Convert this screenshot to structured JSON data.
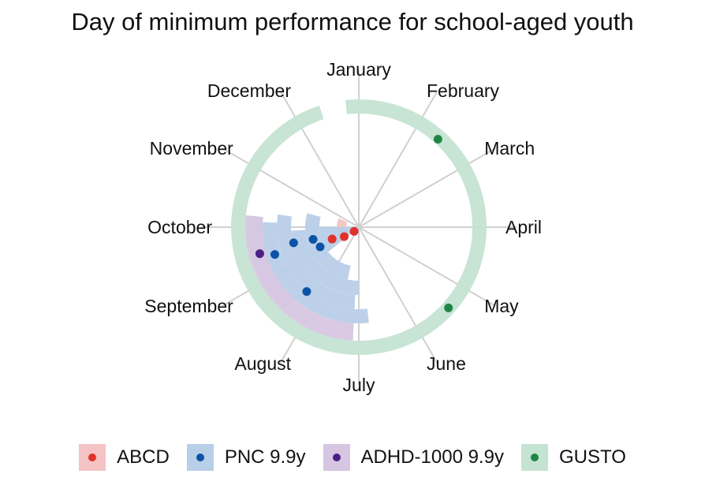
{
  "chart_data": {
    "type": "polar-bar",
    "title": "Day of minimum performance for school-aged youth",
    "months": [
      "January",
      "February",
      "March",
      "April",
      "May",
      "June",
      "July",
      "August",
      "September",
      "October",
      "November",
      "December"
    ],
    "series": [
      {
        "name": "ABCD",
        "fill": "#f4c4c4",
        "dot": "#e0322c",
        "arcs": [
          {
            "r_in": 16,
            "r_out": 28,
            "month_start": 7.6,
            "month_end": 9.8
          }
        ],
        "points": [
          {
            "month": 7.6,
            "r": 8
          },
          {
            "month": 7.9,
            "r": 22
          },
          {
            "month": 8.2,
            "r": 37
          }
        ]
      },
      {
        "name": "PNC 9.9y",
        "fill": "#b8cfe8",
        "dot": "#0b53a6",
        "arcs": [
          {
            "r_in": 0,
            "r_out": 50,
            "month_start": 7.7,
            "month_end": 9.0
          },
          {
            "r_in": 50,
            "r_out": 68,
            "month_start": 6.4,
            "month_end": 9.5
          },
          {
            "r_in": 68,
            "r_out": 86,
            "month_start": 6.0,
            "month_end": 8.9
          },
          {
            "r_in": 86,
            "r_out": 104,
            "month_start": 6.1,
            "month_end": 9.3
          },
          {
            "r_in": 104,
            "r_out": 122,
            "month_start": 5.8,
            "month_end": 9.1
          },
          {
            "r_in": 122,
            "r_out": 140,
            "month_start": 7.4,
            "month_end": 9.2
          }
        ],
        "points": [
          {
            "month": 8.1,
            "r": 55
          },
          {
            "month": 8.5,
            "r": 60
          },
          {
            "month": 8.55,
            "r": 85
          },
          {
            "month": 7.3,
            "r": 105
          },
          {
            "month": 8.4,
            "r": 112
          }
        ]
      },
      {
        "name": "ADHD-1000 9.9y",
        "fill": "#d7c6e2",
        "dot": "#4a1f86",
        "arcs": [
          {
            "r_in": 122,
            "r_out": 144,
            "month_start": 6.1,
            "month_end": 9.2
          }
        ],
        "points": [
          {
            "month": 8.5,
            "r": 130
          }
        ]
      },
      {
        "name": "GUSTO",
        "fill": "#c5e3d2",
        "dot": "#208647",
        "arcs": [
          {
            "r_in": 144,
            "r_out": 162,
            "month_start": 9.6,
            "month_end": 11.4
          },
          {
            "r_in": 144,
            "r_out": 162,
            "month_start": 11.8,
            "month_end": 5.9
          },
          {
            "r_in": 144,
            "r_out": 162,
            "month_start": 5.9,
            "month_end": 9.6
          }
        ],
        "points": [
          {
            "month": 1.4,
            "r": 150
          },
          {
            "month": 4.4,
            "r": 153
          }
        ]
      }
    ],
    "legend": {
      "position": "bottom"
    }
  }
}
